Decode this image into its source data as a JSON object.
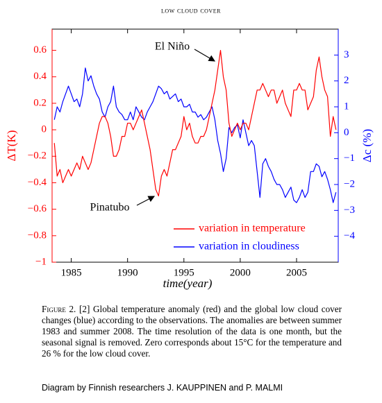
{
  "chart_data": {
    "type": "line",
    "title": "low cloud cover",
    "xlabel": "time(year)",
    "ylabel": "ΔT(K)",
    "y2label": "Δc (%)",
    "annotations": [
      {
        "text": "El Niño"
      },
      {
        "text": "Pinatubo"
      }
    ],
    "xlim": [
      1983.3,
      2008.7
    ],
    "xticks": [
      1985,
      1990,
      1995,
      2000,
      2005
    ],
    "ylim": [
      -1,
      0.76
    ],
    "yticks": [
      {
        "value": -1,
        "label": "−1"
      },
      {
        "value": -0.8,
        "label": "−0.8"
      },
      {
        "value": -0.6,
        "label": "−0.6"
      },
      {
        "value": -0.4,
        "label": "−0.4"
      },
      {
        "value": -0.2,
        "label": "−0.2"
      },
      0,
      0.2,
      0.4,
      0.6
    ],
    "y2lim": [
      -5,
      4
    ],
    "y2ticks": [
      {
        "value": -4,
        "label": "−4"
      },
      {
        "value": -3,
        "label": "−3"
      },
      {
        "value": -2,
        "label": "−2"
      },
      {
        "value": -1,
        "label": "−1"
      },
      0,
      1,
      2,
      3
    ],
    "grid": false,
    "legend": "lower right",
    "x": [
      1983.5,
      1983.75,
      1984,
      1984.25,
      1984.5,
      1984.75,
      1985,
      1985.25,
      1985.5,
      1985.75,
      1986,
      1986.25,
      1986.5,
      1986.75,
      1987,
      1987.25,
      1987.5,
      1987.75,
      1988,
      1988.25,
      1988.5,
      1988.75,
      1989,
      1989.25,
      1989.5,
      1989.75,
      1990,
      1990.25,
      1990.5,
      1990.75,
      1991,
      1991.25,
      1991.5,
      1991.75,
      1992,
      1992.25,
      1992.5,
      1992.75,
      1993,
      1993.25,
      1993.5,
      1993.75,
      1994,
      1994.25,
      1994.5,
      1994.75,
      1995,
      1995.25,
      1995.5,
      1995.75,
      1996,
      1996.25,
      1996.5,
      1996.75,
      1997,
      1997.25,
      1997.5,
      1997.75,
      1998,
      1998.25,
      1998.5,
      1998.75,
      1999,
      1999.25,
      1999.5,
      1999.75,
      2000,
      2000.25,
      2000.5,
      2000.75,
      2001,
      2001.25,
      2001.5,
      2001.75,
      2002,
      2002.25,
      2002.5,
      2002.75,
      2003,
      2003.25,
      2003.5,
      2003.75,
      2004,
      2004.25,
      2004.5,
      2004.75,
      2005,
      2005.25,
      2005.5,
      2005.75,
      2006,
      2006.25,
      2006.5,
      2006.75,
      2007,
      2007.25,
      2007.5,
      2007.75,
      2008,
      2008.25,
      2008.5
    ],
    "series": [
      {
        "name": "variation in temperature",
        "color": "#ff0000",
        "values": [
          -0.1,
          -0.35,
          -0.3,
          -0.4,
          -0.35,
          -0.3,
          -0.35,
          -0.3,
          -0.25,
          -0.3,
          -0.2,
          -0.25,
          -0.3,
          -0.25,
          -0.15,
          -0.05,
          0.05,
          0.1,
          0.1,
          0.05,
          -0.05,
          -0.2,
          -0.2,
          -0.15,
          -0.05,
          -0.05,
          0.05,
          0.05,
          0.0,
          0.05,
          0.1,
          0.15,
          0.05,
          -0.05,
          -0.15,
          -0.3,
          -0.45,
          -0.5,
          -0.35,
          -0.3,
          -0.35,
          -0.25,
          -0.15,
          -0.15,
          -0.1,
          -0.05,
          0.1,
          0.0,
          0.05,
          -0.05,
          -0.1,
          -0.1,
          -0.05,
          -0.05,
          0.0,
          0.1,
          0.2,
          0.3,
          0.45,
          0.6,
          0.4,
          0.3,
          0.05,
          -0.05,
          0.0,
          0.05,
          0.0,
          0.05,
          0.05,
          0.0,
          0.1,
          0.2,
          0.3,
          0.3,
          0.35,
          0.3,
          0.25,
          0.3,
          0.3,
          0.2,
          0.25,
          0.3,
          0.2,
          0.15,
          0.1,
          0.3,
          0.3,
          0.35,
          0.3,
          0.3,
          0.15,
          0.2,
          0.25,
          0.45,
          0.55,
          0.4,
          0.3,
          0.25,
          -0.05,
          0.1,
          0.0
        ]
      },
      {
        "name": "variation in cloudiness",
        "color": "#0000ff",
        "axis": "y2",
        "values": [
          0.5,
          1.0,
          0.8,
          1.2,
          1.5,
          1.8,
          1.5,
          1.2,
          1.3,
          1.0,
          1.5,
          2.5,
          2.0,
          2.2,
          1.8,
          1.5,
          1.3,
          0.8,
          0.6,
          1.0,
          1.2,
          1.8,
          1.0,
          0.8,
          0.7,
          0.5,
          0.5,
          0.8,
          0.5,
          1.0,
          0.8,
          0.6,
          0.5,
          0.8,
          1.0,
          1.2,
          1.5,
          1.8,
          1.7,
          1.5,
          1.6,
          1.3,
          1.4,
          1.5,
          1.2,
          1.3,
          1.0,
          1.0,
          1.1,
          0.8,
          0.8,
          0.6,
          0.7,
          0.5,
          0.6,
          0.8,
          1.0,
          0.5,
          -0.3,
          -0.8,
          -1.5,
          -1.0,
          0.2,
          0.0,
          0.2,
          0.3,
          -0.2,
          0.5,
          0.0,
          -0.5,
          -0.3,
          -0.5,
          -1.5,
          -2.5,
          -1.2,
          -1.0,
          -1.3,
          -1.5,
          -1.8,
          -2.0,
          -2.0,
          -2.2,
          -2.5,
          -2.3,
          -2.1,
          -2.6,
          -2.7,
          -2.5,
          -2.2,
          -2.5,
          -2.3,
          -1.5,
          -1.5,
          -1.2,
          -1.3,
          -1.7,
          -1.5,
          -1.8,
          -2.2,
          -2.7,
          -2.3
        ]
      }
    ]
  },
  "caption": {
    "label": "Figure 2.",
    "text": "[2] Global temperature anomaly (red) and the global low cloud cover changes (blue) according to the observations. The anomalies are between summer 1983 and summer 2008. The time resolution of the data is one month, but the seasonal signal is removed. Zero corresponds about 15°C for the temperature and 26 % for the low cloud cover."
  },
  "footer": "Diagram by Finnish researchers J. KAUPPINEN and P. MALMI"
}
